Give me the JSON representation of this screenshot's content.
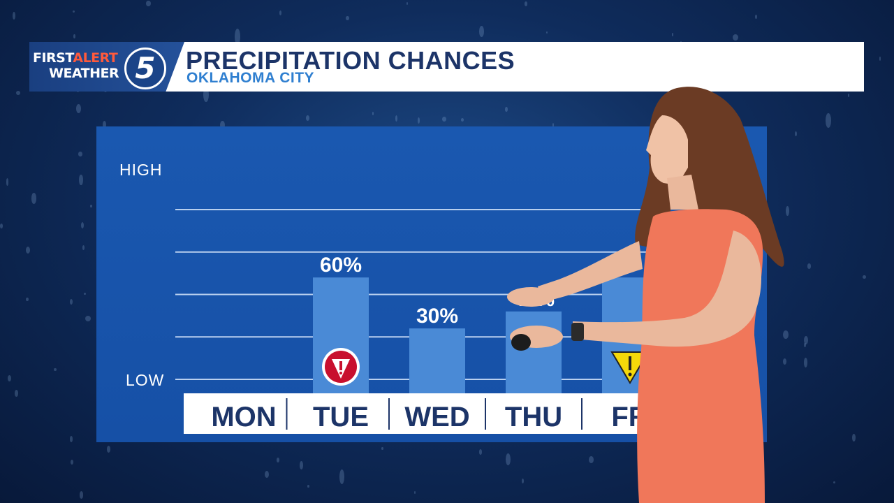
{
  "header": {
    "logo_first": "FIRST",
    "logo_alert": "ALERT",
    "logo_weather": "WEATHER",
    "logo_number": "5",
    "title": "PRECIPITATION CHANCES",
    "subtitle": "OKLAHOMA CITY"
  },
  "colors": {
    "bar": "#4a8ad6",
    "panel": "#1a56ae",
    "title": "#1c3468",
    "subtitle": "#2f7fd0",
    "alert_red": "#c8102e",
    "alert_yellow": "#f5d90a"
  },
  "icons": [
    "red-first-alert-icon",
    "yellow-first-alert-icon"
  ],
  "chart_data": {
    "type": "bar",
    "title": "PRECIPITATION CHANCES",
    "y_tick_labels": [
      "LOW",
      "HIGH"
    ],
    "ylim": [
      0,
      100
    ],
    "grid": true,
    "categories": [
      "MON",
      "TUE",
      "WED",
      "THU",
      "FR"
    ],
    "values": [
      0,
      60,
      30,
      40,
      60
    ],
    "value_labels": [
      "",
      "60%",
      "30%",
      "40%",
      ""
    ],
    "alert_icons": [
      "",
      "red",
      "",
      "",
      "yellow"
    ]
  }
}
